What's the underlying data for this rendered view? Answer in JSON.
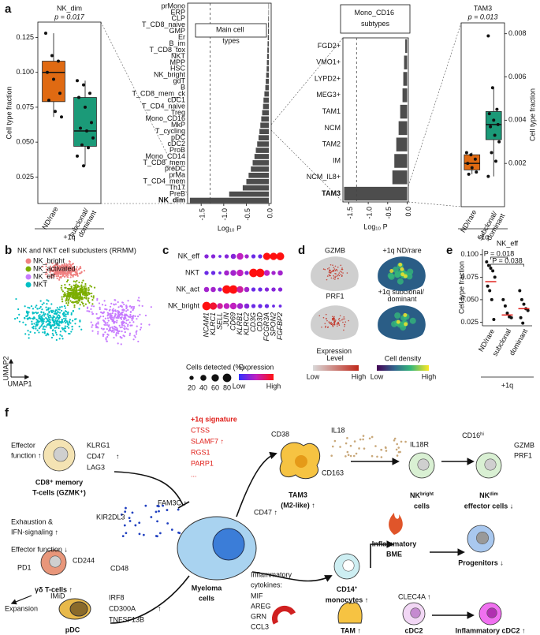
{
  "panel_labels": [
    "a",
    "b",
    "c",
    "d",
    "e",
    "f"
  ],
  "chart_data": [
    {
      "type": "box",
      "title": "NK_dim",
      "subtitle": "p = 0.017",
      "ylabel": "Cell type fraction",
      "group_label": "+1q",
      "categories": [
        "ND/rare",
        "subclonal/ dominant"
      ],
      "colors": [
        "#e06a12",
        "#1b9a78"
      ],
      "ylim": [
        0.006,
        0.136
      ],
      "yticks": [
        0.025,
        {
          "value": 0.05,
          "label": "0.050"
        },
        0.075,
        {
          "value": 0.1,
          "label": "0.100"
        },
        0.125
      ],
      "axis_side": "left",
      "boxes": [
        {
          "whislo": 0.068,
          "q1": 0.079,
          "med": 0.1,
          "q3": 0.108,
          "whishi": 0.128
        },
        {
          "whislo": 0.033,
          "q1": 0.047,
          "med": 0.058,
          "q3": 0.082,
          "whishi": 0.094
        }
      ],
      "points": [
        [
          0.128,
          0.112,
          0.108,
          0.1,
          0.095,
          0.085,
          0.08,
          0.072,
          0.068
        ],
        [
          0.094,
          0.091,
          0.085,
          0.082,
          0.075,
          0.064,
          0.06,
          0.058,
          0.053,
          0.048,
          0.046,
          0.04,
          0.033
        ]
      ]
    },
    {
      "type": "hbar",
      "title": "Main cell types",
      "xlabel": "Log₁₀ P",
      "color": "#4d4d4d",
      "threshold": -1.3,
      "xlim": [
        -1.8,
        0.05
      ],
      "xticks": [
        -1.5,
        {
          "value": -1,
          "label": "-1.0"
        },
        -0.5,
        {
          "value": 0,
          "label": "0.0"
        }
      ],
      "categories": [
        "prMono",
        "ERP",
        "CLP",
        "T_CD8_naive",
        "GMP",
        "Er",
        "B_im",
        "T_CD8_tox",
        "NKT",
        "MPP",
        "HSC",
        "NK_bright",
        "gdT",
        "B",
        "T_CD8_mem_ck",
        "cDC1",
        "T_CD4_naive",
        "Treg",
        "Mono_CD16",
        "MkP",
        "T_cycling",
        "pDC",
        "cDC2",
        "ProB",
        "Mono_CD14",
        "T_CD8_mem",
        "preDC",
        "prMa",
        "T_CD4_mem",
        "Th17",
        "PreB",
        "NK_dim"
      ],
      "values": [
        -0.01,
        -0.01,
        -0.015,
        -0.02,
        -0.02,
        -0.025,
        -0.03,
        -0.035,
        -0.04,
        -0.045,
        -0.05,
        -0.06,
        -0.07,
        -0.08,
        -0.1,
        -0.12,
        -0.13,
        -0.15,
        -0.17,
        -0.19,
        -0.21,
        -0.23,
        -0.26,
        -0.29,
        -0.32,
        -0.36,
        -0.4,
        -0.45,
        -0.5,
        -0.58,
        -0.88,
        -1.75
      ]
    },
    {
      "type": "hbar",
      "title": "Mono_CD16 subtypes",
      "xlabel": "Log₁₀ P",
      "color": "#4d4d4d",
      "threshold": -1.3,
      "xlim": [
        -1.65,
        0.03
      ],
      "xticks": [
        -1.5,
        {
          "value": -1,
          "label": "-1.0"
        },
        -0.5,
        {
          "value": 0,
          "label": "0.0"
        }
      ],
      "categories": [
        "FGD2+",
        "VMO1+",
        "LYPD2+",
        "MEG3+",
        "TAM1",
        "NCM",
        "TAM2",
        "IM",
        "NCM_IL8+",
        "TAM3"
      ],
      "values": [
        -0.05,
        -0.08,
        -0.1,
        -0.12,
        -0.18,
        -0.22,
        -0.28,
        -0.33,
        -0.38,
        -1.62
      ]
    },
    {
      "type": "box",
      "title": "TAM3",
      "subtitle": "p = 0.013",
      "ylabel": "Cell type fraction",
      "group_label": "+1q",
      "categories": [
        "ND/rare",
        "subclonal/ dominant"
      ],
      "colors": [
        "#e06a12",
        "#1b9a78"
      ],
      "ylim": [
        0,
        0.0085
      ],
      "yticks": [
        0.002,
        0.004,
        0.006,
        0.008
      ],
      "axis_side": "right",
      "boxes": [
        {
          "whislo": 0.0015,
          "q1": 0.0017,
          "med": 0.002,
          "q3": 0.0024,
          "whishi": 0.0025
        },
        {
          "whislo": 0.0014,
          "q1": 0.0031,
          "med": 0.0038,
          "q3": 0.0044,
          "whishi": 0.0055
        }
      ],
      "points": [
        [
          0.0025,
          0.0024,
          0.0022,
          0.002,
          0.0018,
          0.0016,
          0.0015
        ],
        [
          0.0079,
          0.0055,
          0.0045,
          0.0043,
          0.004,
          0.0038,
          0.0037,
          0.0033,
          0.003,
          0.0025,
          0.0021,
          0.0014
        ]
      ]
    },
    {
      "type": "umap",
      "title": "NK and NKT cell subclusters (RRMM)",
      "xlabel": "UMAP1",
      "ylabel": "UMAP2",
      "series": [
        {
          "name": "NK_bright",
          "color": "#f08080"
        },
        {
          "name": "NK_activated",
          "color": "#7cae00"
        },
        {
          "name": "NK_eff",
          "color": "#c77cff"
        },
        {
          "name": "NKT",
          "color": "#00bfc4"
        }
      ]
    },
    {
      "type": "dot",
      "rows": [
        "NK_eff",
        "NKT",
        "NK_act",
        "NK_bright"
      ],
      "columns": [
        "NCAM1",
        "KLRC1",
        "SELL",
        "JUN",
        "CD69",
        "KLRB1",
        "KLRC2",
        "CD3G",
        "CD3D",
        "FCGR3A",
        "SPON2",
        "FGFBP2"
      ],
      "pct": [
        [
          20,
          20,
          10,
          20,
          30,
          50,
          20,
          20,
          20,
          60,
          60,
          70
        ],
        [
          20,
          20,
          10,
          30,
          40,
          50,
          20,
          80,
          80,
          40,
          20,
          30
        ],
        [
          30,
          30,
          20,
          80,
          80,
          50,
          30,
          20,
          20,
          20,
          20,
          20
        ],
        [
          80,
          60,
          40,
          40,
          50,
          40,
          30,
          20,
          20,
          20,
          10,
          10
        ]
      ],
      "expr": [
        [
          0.3,
          0.3,
          0.2,
          0.3,
          0.3,
          0.5,
          0.4,
          0.2,
          0.2,
          1,
          1,
          1
        ],
        [
          0.2,
          0.2,
          0.2,
          0.4,
          0.4,
          0.5,
          0.3,
          1,
          1,
          0.5,
          0.4,
          0.4
        ],
        [
          0.4,
          0.4,
          0.3,
          1,
          1,
          0.6,
          0.4,
          0.2,
          0.2,
          0.3,
          0.3,
          0.3
        ],
        [
          1,
          0.9,
          0.6,
          0.5,
          0.5,
          0.4,
          0.3,
          0.2,
          0.2,
          0.2,
          0.2,
          0.2
        ]
      ],
      "size_legend_title": "Cells detected (%)",
      "size_legend": [
        20,
        40,
        60,
        80
      ],
      "color_legend_title": "Expression",
      "color_low_label": "Low",
      "color_high_label": "High",
      "colors": [
        "#3030ff",
        "#c020c0",
        "#ff1010"
      ]
    },
    {
      "type": "strip",
      "title": "NK_eff",
      "ylabel": "Cell type fraction",
      "group_label": "+1q",
      "categories": [
        "ND/rare",
        "subclonal",
        "dominant"
      ],
      "median_color": "#e0201b",
      "ylim": [
        0.021,
        0.106
      ],
      "yticks": [
        0.025,
        {
          "value": 0.05,
          "label": "0.050"
        },
        0.075,
        {
          "value": 0.1,
          "label": "0.100"
        }
      ],
      "points": [
        [
          0.092,
          0.088,
          0.085,
          0.082,
          0.075,
          0.065,
          0.06,
          0.05,
          0.028
        ],
        [
          0.05,
          0.043,
          0.035,
          0.031,
          0.03
        ],
        [
          0.06,
          0.05,
          0.045,
          0.04,
          0.038,
          0.03,
          0.024
        ]
      ],
      "medians": [
        0.07,
        0.033,
        0.04
      ],
      "comparisons": [
        {
          "label": "P = 0.018",
          "from": 0,
          "to": 1
        },
        {
          "label": "P = 0.038",
          "from": 0,
          "to": 2
        }
      ]
    }
  ],
  "panel_d": {
    "feature_titles": [
      "GZMB",
      "PRF1"
    ],
    "density_titles": [
      "+1q ND/rare",
      "+1q subclonal/ dominant"
    ],
    "expression_legend": {
      "title": "Expression Level",
      "low": "Low",
      "high": "High"
    },
    "density_legend": {
      "title": "Cell density",
      "low": "Low",
      "high": "High"
    }
  },
  "diagram": {
    "signature_title": "+1q signature",
    "signature_genes": [
      "CTSS",
      "SLAMF7 ↑",
      "RGS1",
      "PARP1",
      "..."
    ],
    "cd8_effect": [
      "Effector",
      "function ↑"
    ],
    "cd8_markers": [
      "KLRG1",
      "CD47",
      "LAG3"
    ],
    "cd8_trend": "↑",
    "cd8_label": [
      "CD8⁺ memory",
      "T-cells (GZMK⁺)"
    ],
    "fam3c": "FAM3C ↑",
    "kir": "KIR2DL3",
    "gd_effects": [
      "Exhaustion &",
      "IFN-signaling ↑",
      "Effector function ↓"
    ],
    "pd1": "PD1",
    "cd244": "CD244",
    "cd48": "CD48",
    "gd_label": "γδ T-cells ↑",
    "myeloma": [
      "Myeloma",
      "cells"
    ],
    "cd47": "CD47 ↑",
    "cytokines_title": [
      "Inflammatory",
      "cytokines:"
    ],
    "cytokines": [
      "MIF",
      "AREG",
      "GRN",
      "CCL3"
    ],
    "imid": "IMiD",
    "expansion": "Expansion",
    "pdc_markers": [
      "IRF8",
      "CD300A",
      "TNFSF13B"
    ],
    "pdc_trend": "↑",
    "pdc": "pDC",
    "tam3_markers": [
      "CD38",
      "CD163"
    ],
    "il18": "IL18",
    "il18r": "IL18R",
    "tam3_label": [
      "TAM3",
      "(M2-like) ↑"
    ],
    "nk_bright": [
      "NK",
      "bright",
      "cells"
    ],
    "cd16": [
      "CD16",
      "hi"
    ],
    "nk_effector": [
      "GZMB",
      "PRF1"
    ],
    "nk_dim": [
      "NK",
      "dim",
      "effector cells ↓"
    ],
    "bme": [
      "Inflammatory",
      "BME"
    ],
    "progenitors": "Progenitors ↓",
    "cd14": [
      "CD14",
      "+",
      "monocytes ↑"
    ],
    "tam": "TAM ↑",
    "clec4a": "CLEC4A ↑",
    "cdc2": "cDC2",
    "inflam_cdc2": "Inflammatory cDC2 ↑"
  }
}
